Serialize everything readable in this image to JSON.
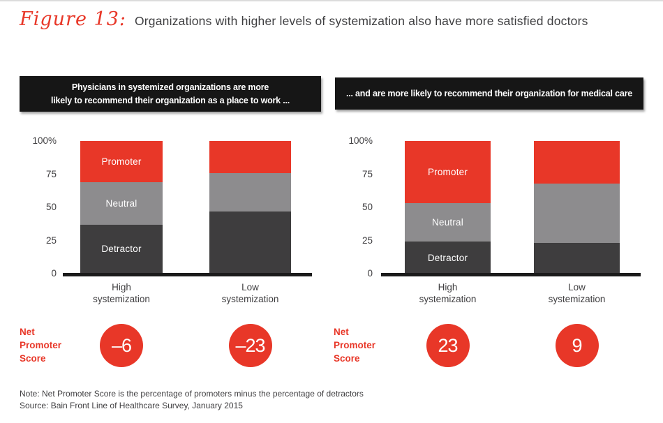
{
  "figure": {
    "label": "Figure 13:",
    "title": "Organizations with higher levels of systemization also have more satisfied doctors"
  },
  "colors": {
    "accent_red": "#e83728",
    "detractor_gray": "#3e3d3e",
    "neutral_gray": "#8d8c8e",
    "header_black": "#161616",
    "axis_black": "#1b1b1b",
    "text_dark": "#3f3e40"
  },
  "nps_label": "Net\nPromoter\nScore",
  "footer": {
    "note": "Note: Net Promoter Score is the percentage of promoters minus the percentage of detractors",
    "source": "Source: Bain Front Line of Healthcare Survey, January 2015"
  },
  "chart_data": [
    {
      "type": "bar",
      "stacked": true,
      "title": "Physicians in systemized organizations are more\nlikely to recommend their organization as a place to work ...",
      "categories": [
        "High\nsystemization",
        "Low\nsystemization"
      ],
      "series": [
        {
          "name": "Detractor",
          "values": [
            37,
            47
          ],
          "color": "#3e3d3e"
        },
        {
          "name": "Neutral",
          "values": [
            32,
            29
          ],
          "color": "#8d8c8e"
        },
        {
          "name": "Promoter",
          "values": [
            31,
            24
          ],
          "color": "#e83728"
        }
      ],
      "ylim": [
        0,
        100
      ],
      "yticks": [
        {
          "label": "100%",
          "value": 100
        },
        {
          "label": "75",
          "value": 75
        },
        {
          "label": "50",
          "value": 50
        },
        {
          "label": "25",
          "value": 25
        },
        {
          "label": "0",
          "value": 0
        }
      ],
      "grid": false,
      "legend_position": "inside-first-bar",
      "net_promoter_scores": [
        "–6",
        "–23"
      ]
    },
    {
      "type": "bar",
      "stacked": true,
      "title": "... and are more likely to recommend their organization for medical care",
      "categories": [
        "High\nsystemization",
        "Low\nsystemization"
      ],
      "series": [
        {
          "name": "Detractor",
          "values": [
            24,
            23
          ],
          "color": "#3e3d3e"
        },
        {
          "name": "Neutral",
          "values": [
            29,
            45
          ],
          "color": "#8d8c8e"
        },
        {
          "name": "Promoter",
          "values": [
            47,
            32
          ],
          "color": "#e83728"
        }
      ],
      "ylim": [
        0,
        100
      ],
      "yticks": [
        {
          "label": "100%",
          "value": 100
        },
        {
          "label": "75",
          "value": 75
        },
        {
          "label": "50",
          "value": 50
        },
        {
          "label": "25",
          "value": 25
        },
        {
          "label": "0",
          "value": 0
        }
      ],
      "grid": false,
      "legend_position": "inside-first-bar",
      "net_promoter_scores": [
        "23",
        "9"
      ]
    }
  ]
}
